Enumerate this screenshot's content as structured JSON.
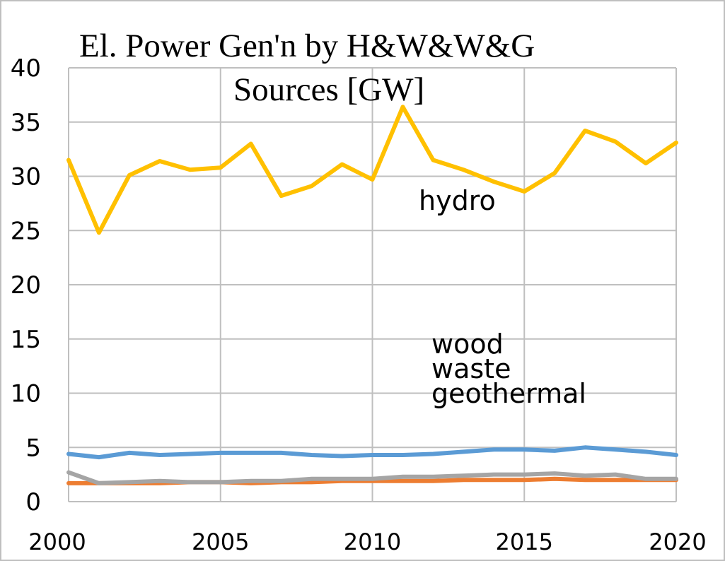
{
  "chart_data": {
    "type": "line",
    "title_lines": [
      "El. Power Gen'n by H&W&W&G",
      "Sources [GW]"
    ],
    "xlabel": "",
    "ylabel": "",
    "xlim": [
      2000,
      2020
    ],
    "ylim": [
      0,
      40
    ],
    "x_ticks": [
      2000,
      2005,
      2010,
      2015,
      2020
    ],
    "y_ticks": [
      0,
      5,
      10,
      15,
      20,
      25,
      30,
      35,
      40
    ],
    "grid": true,
    "legend": "none",
    "annotations": [
      {
        "text": "hydro",
        "series": "hydro"
      },
      {
        "text": "wood",
        "series": "wood"
      },
      {
        "text": "waste",
        "series": "waste"
      },
      {
        "text": "geothermal",
        "series": "geothermal"
      }
    ],
    "x": [
      2000,
      2001,
      2002,
      2003,
      2004,
      2005,
      2006,
      2007,
      2008,
      2009,
      2010,
      2011,
      2012,
      2013,
      2014,
      2015,
      2016,
      2017,
      2018,
      2019,
      2020
    ],
    "series": [
      {
        "key": "hydro",
        "color": "#ffc000",
        "values": [
          31.5,
          24.8,
          30.1,
          31.4,
          30.6,
          30.8,
          33.0,
          28.2,
          29.1,
          31.1,
          29.7,
          36.4,
          31.5,
          30.6,
          29.5,
          28.6,
          30.3,
          34.2,
          33.2,
          31.2,
          33.1
        ]
      },
      {
        "key": "wood",
        "color": "#5b9bd5",
        "values": [
          4.4,
          4.1,
          4.5,
          4.3,
          4.4,
          4.5,
          4.5,
          4.5,
          4.3,
          4.2,
          4.3,
          4.3,
          4.4,
          4.6,
          4.8,
          4.8,
          4.7,
          5.0,
          4.8,
          4.6,
          4.3
        ]
      },
      {
        "key": "waste",
        "color": "#a5a5a5",
        "values": [
          2.7,
          1.7,
          1.8,
          1.9,
          1.8,
          1.8,
          1.9,
          1.9,
          2.1,
          2.1,
          2.1,
          2.3,
          2.3,
          2.4,
          2.5,
          2.5,
          2.6,
          2.4,
          2.5,
          2.1,
          2.1
        ]
      },
      {
        "key": "geothermal",
        "color": "#ed7d31",
        "values": [
          1.7,
          1.7,
          1.7,
          1.7,
          1.8,
          1.8,
          1.7,
          1.8,
          1.8,
          1.9,
          1.9,
          1.9,
          1.9,
          2.0,
          2.0,
          2.0,
          2.1,
          2.0,
          2.0,
          2.0,
          2.0
        ]
      }
    ]
  }
}
